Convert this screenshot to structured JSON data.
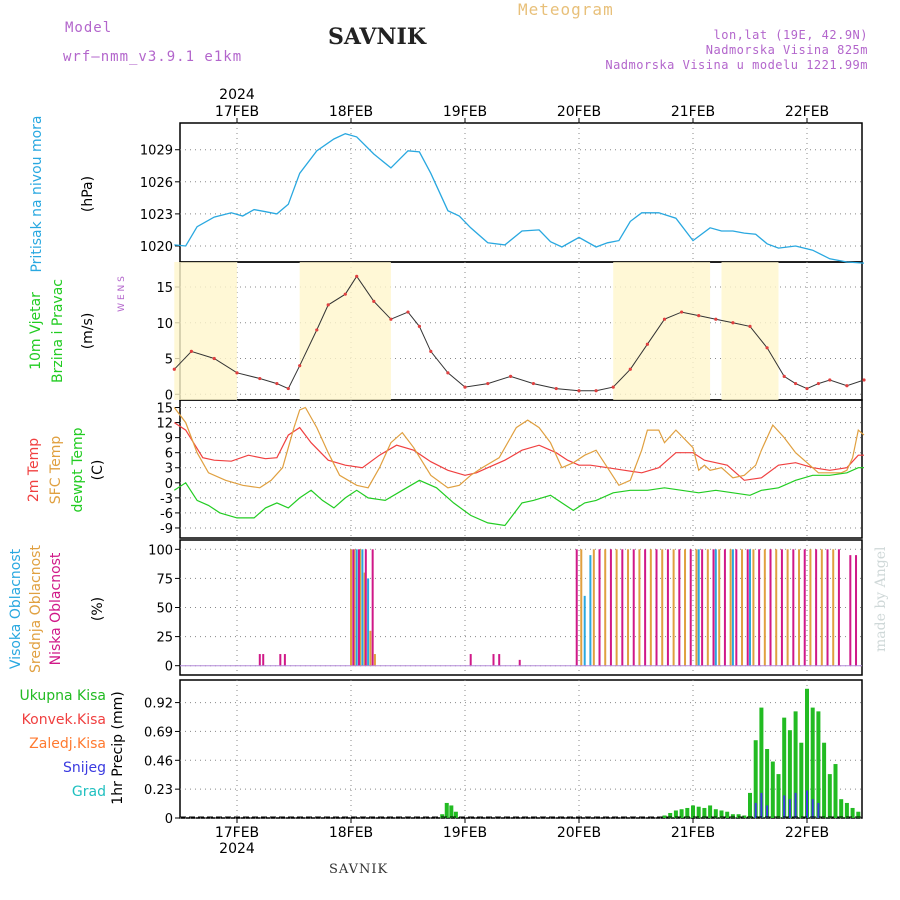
{
  "header": {
    "model_label": "Model",
    "model_name": "wrf—nmm_v3.9.1  e1km",
    "station": "SAVNIK",
    "meteogram": "Meteogram",
    "lonlat": "lon,lat (19E, 42.9N)",
    "elevation": "Nadmorska Visina 825m",
    "model_elevation": "Nadmorska Visina u modelu 1221.99m"
  },
  "footer": {
    "station": "SAVNIK",
    "credit": "made by Angel"
  },
  "time_axis": {
    "year": "2024",
    "days": [
      "17FEB",
      "18FEB",
      "19FEB",
      "20FEB",
      "21FEB",
      "22FEB"
    ]
  },
  "colors": {
    "pressure": "#29a8e0",
    "t2m": "#f04040",
    "sfc": "#e0a040",
    "dewpt": "#22cc22",
    "cloud_high": "#29a8e0",
    "cloud_mid": "#e0a040",
    "cloud_low": "#d01888",
    "precip_total": "#22bb22",
    "precip_conv": "#f04040",
    "precip_frz": "#ff7a30",
    "snow": "#3a3ae0",
    "graupel": "#20c0c0"
  },
  "chart_data": [
    {
      "type": "line",
      "panel": "pressure",
      "ylabel": "Pritisak na nivou mora",
      "unit": "(hPa)",
      "yticks": [
        1020,
        1023,
        1026,
        1029
      ],
      "ylim": [
        1018.5,
        1031.5
      ],
      "xlim": [
        -0.55,
        5.5
      ],
      "grid": true,
      "series": [
        {
          "x": [
            -0.55,
            -0.45,
            -0.35,
            -0.2,
            -0.05,
            0.05,
            0.15,
            0.25,
            0.35,
            0.45,
            0.55,
            0.7,
            0.85,
            0.95,
            1.05,
            1.2,
            1.35,
            1.5,
            1.6,
            1.7,
            1.85,
            1.95,
            2.05,
            2.2,
            2.35,
            2.5,
            2.65,
            2.75,
            2.85,
            3.0,
            3.15,
            3.25,
            3.35,
            3.45,
            3.55,
            3.7,
            3.85,
            4.0,
            4.15,
            4.25,
            4.35,
            4.45,
            4.55,
            4.65,
            4.75,
            4.9,
            5.05,
            5.2,
            5.35,
            5.5
          ],
          "y": [
            1020.1,
            1020.0,
            1021.8,
            1022.7,
            1023.1,
            1022.8,
            1023.4,
            1023.2,
            1023.0,
            1023.9,
            1026.8,
            1028.9,
            1030.0,
            1030.5,
            1030.2,
            1028.6,
            1027.3,
            1028.9,
            1028.8,
            1026.8,
            1023.3,
            1022.8,
            1021.7,
            1020.3,
            1020.1,
            1021.4,
            1021.5,
            1020.4,
            1019.9,
            1020.8,
            1019.9,
            1020.3,
            1020.5,
            1022.3,
            1023.1,
            1023.1,
            1022.6,
            1020.5,
            1021.7,
            1021.4,
            1021.4,
            1021.2,
            1021.1,
            1020.2,
            1019.8,
            1020.0,
            1019.6,
            1018.8,
            1018.5,
            1018.4
          ]
        }
      ]
    },
    {
      "type": "line",
      "panel": "wind",
      "ylabel": [
        "10m Vjetar",
        "Brzina i Pravac"
      ],
      "unit": "(m/s)",
      "compass": "W  E  N  S",
      "yticks": [
        0,
        5,
        10,
        15
      ],
      "ylim": [
        -0.8,
        18.5
      ],
      "xlim": [
        -0.55,
        5.5
      ],
      "series": [
        {
          "x": [
            -0.55,
            -0.4,
            -0.2,
            0.0,
            0.2,
            0.35,
            0.45,
            0.55,
            0.7,
            0.8,
            0.95,
            1.05,
            1.2,
            1.35,
            1.5,
            1.6,
            1.7,
            1.85,
            2.0,
            2.2,
            2.4,
            2.6,
            2.8,
            3.0,
            3.15,
            3.3,
            3.45,
            3.6,
            3.75,
            3.9,
            4.05,
            4.2,
            4.35,
            4.5,
            4.65,
            4.8,
            4.9,
            5.0,
            5.1,
            5.2,
            5.35,
            5.5
          ],
          "y": [
            3.5,
            6.0,
            5.0,
            3.0,
            2.2,
            1.5,
            0.8,
            4.0,
            9.0,
            12.5,
            14.0,
            16.5,
            13.0,
            10.5,
            11.5,
            9.5,
            6.0,
            3.0,
            1.0,
            1.5,
            2.5,
            1.5,
            0.8,
            0.5,
            0.5,
            1.0,
            3.5,
            7.0,
            10.5,
            11.5,
            11.0,
            10.5,
            10.0,
            9.5,
            6.5,
            2.5,
            1.5,
            0.8,
            1.5,
            2.0,
            1.2,
            2.0
          ]
        }
      ]
    },
    {
      "type": "line",
      "panel": "temperature",
      "ylabel": [
        "2m Temp",
        "SFC Temp",
        "dewpt Temp"
      ],
      "unit": "(C)",
      "yticks": [
        -9,
        -6,
        -3,
        0,
        3,
        6,
        9,
        12,
        15
      ],
      "ylim": [
        -11,
        16.5
      ],
      "xlim": [
        -0.55,
        5.5
      ],
      "series": [
        {
          "name": "2m Temp",
          "x": [
            -0.55,
            -0.45,
            -0.3,
            -0.2,
            -0.05,
            0.1,
            0.25,
            0.35,
            0.45,
            0.55,
            0.65,
            0.8,
            0.95,
            1.1,
            1.25,
            1.4,
            1.55,
            1.7,
            1.85,
            2.0,
            2.1,
            2.2,
            2.35,
            2.5,
            2.65,
            2.8,
            2.9,
            3.0,
            3.1,
            3.25,
            3.4,
            3.55,
            3.7,
            3.85,
            4.0,
            4.1,
            4.2,
            4.3,
            4.45,
            4.6,
            4.75,
            4.9,
            5.05,
            5.2,
            5.35,
            5.45,
            5.5
          ],
          "y": [
            12.0,
            10.5,
            5.0,
            4.5,
            4.3,
            5.5,
            4.8,
            5.0,
            9.5,
            11.0,
            8.0,
            4.5,
            3.5,
            3.0,
            5.5,
            7.5,
            6.5,
            4.2,
            2.5,
            1.5,
            2.0,
            3.0,
            4.5,
            6.5,
            7.5,
            6.0,
            4.5,
            3.5,
            3.5,
            3.0,
            2.5,
            2.0,
            3.0,
            6.0,
            6.0,
            4.5,
            4.0,
            3.5,
            0.5,
            1.0,
            3.5,
            4.0,
            3.0,
            2.5,
            3.0,
            5.5,
            5.5
          ]
        },
        {
          "name": "SFC Temp",
          "x": [
            -0.55,
            -0.45,
            -0.35,
            -0.25,
            -0.1,
            0.05,
            0.2,
            0.3,
            0.4,
            0.5,
            0.55,
            0.6,
            0.7,
            0.8,
            0.9,
            1.05,
            1.15,
            1.25,
            1.35,
            1.45,
            1.55,
            1.7,
            1.85,
            1.95,
            2.05,
            2.15,
            2.3,
            2.45,
            2.55,
            2.65,
            2.75,
            2.85,
            2.95,
            3.05,
            3.15,
            3.25,
            3.35,
            3.45,
            3.55,
            3.6,
            3.7,
            3.75,
            3.85,
            4.0,
            4.05,
            4.1,
            4.15,
            4.25,
            4.35,
            4.45,
            4.55,
            4.6,
            4.7,
            4.8,
            4.9,
            5.0,
            5.1,
            5.2,
            5.3,
            5.35,
            5.4,
            5.45,
            5.5
          ],
          "y": [
            15.0,
            12.0,
            6.0,
            2.0,
            0.5,
            -0.5,
            -1.0,
            0.5,
            3.0,
            11.0,
            14.5,
            15.0,
            11.0,
            6.0,
            1.5,
            -0.5,
            -1.0,
            3.0,
            8.0,
            10.0,
            7.0,
            1.5,
            -1.0,
            -0.5,
            1.5,
            3.0,
            5.0,
            11.0,
            12.5,
            11.0,
            8.0,
            3.0,
            4.0,
            5.5,
            6.5,
            3.0,
            -0.5,
            0.5,
            6.5,
            10.5,
            10.5,
            8.0,
            10.5,
            7.0,
            2.5,
            3.5,
            2.5,
            3.0,
            1.0,
            1.5,
            3.5,
            6.5,
            11.5,
            9.0,
            6.0,
            4.0,
            2.0,
            2.0,
            2.0,
            2.5,
            5.0,
            10.5,
            9.5
          ]
        },
        {
          "name": "dewpt Temp",
          "x": [
            -0.55,
            -0.45,
            -0.35,
            -0.25,
            -0.15,
            0.0,
            0.15,
            0.25,
            0.35,
            0.45,
            0.55,
            0.65,
            0.75,
            0.85,
            0.95,
            1.05,
            1.15,
            1.3,
            1.45,
            1.6,
            1.75,
            1.9,
            2.05,
            2.2,
            2.35,
            2.5,
            2.6,
            2.75,
            2.85,
            2.95,
            3.05,
            3.15,
            3.3,
            3.45,
            3.6,
            3.75,
            3.9,
            4.05,
            4.2,
            4.35,
            4.5,
            4.6,
            4.75,
            4.9,
            5.05,
            5.2,
            5.35,
            5.45,
            5.5
          ],
          "y": [
            -1.5,
            0.0,
            -3.5,
            -4.5,
            -6.0,
            -7.0,
            -7.0,
            -5.0,
            -4.0,
            -5.0,
            -3.0,
            -1.5,
            -3.5,
            -5.0,
            -3.0,
            -1.5,
            -3.0,
            -3.5,
            -1.5,
            0.5,
            -1.0,
            -4.0,
            -6.5,
            -8.0,
            -8.5,
            -4.0,
            -3.5,
            -2.5,
            -4.0,
            -5.5,
            -4.0,
            -3.5,
            -2.0,
            -1.5,
            -1.5,
            -1.0,
            -1.5,
            -2.0,
            -1.5,
            -2.0,
            -2.5,
            -1.5,
            -1.0,
            0.5,
            1.5,
            1.5,
            2.0,
            3.0,
            3.0
          ]
        }
      ]
    },
    {
      "type": "bar",
      "panel": "clouds",
      "ylabel": [
        "Visoka Oblacnost",
        "Srednja Oblacnost",
        "Niska Oblacnost"
      ],
      "unit": "(%)",
      "yticks": [
        0,
        25,
        50,
        75,
        100
      ],
      "ylim": [
        -8,
        108
      ],
      "xlim": [
        -0.55,
        5.5
      ],
      "series": [
        {
          "name": "Visoka Oblacnost",
          "x": [
            1.0,
            1.05,
            1.1,
            1.15,
            3.05,
            3.1,
            4.05,
            4.2,
            4.35,
            4.5
          ],
          "values": [
            100,
            100,
            100,
            75,
            60,
            95,
            100,
            100,
            100,
            100
          ]
        },
        {
          "name": "Srednja Oblacnost",
          "x": [
            1.0,
            1.03,
            1.08,
            1.12,
            1.17,
            1.21,
            1.25,
            3.02,
            3.13,
            3.23,
            3.33,
            3.43,
            3.53,
            3.63,
            3.73,
            3.83,
            3.93,
            4.03,
            4.13,
            4.23,
            4.33,
            4.43,
            4.53,
            4.63,
            4.73,
            4.83,
            4.93,
            5.03,
            5.13,
            5.23
          ],
          "values": [
            100,
            100,
            100,
            80,
            30,
            10,
            0,
            100,
            100,
            100,
            100,
            100,
            100,
            100,
            100,
            100,
            100,
            100,
            100,
            100,
            100,
            100,
            100,
            100,
            100,
            100,
            100,
            100,
            100,
            100
          ]
        },
        {
          "name": "Niska Oblacnost",
          "x": [
            0.2,
            0.23,
            0.38,
            0.42,
            1.02,
            1.07,
            1.13,
            1.19,
            2.05,
            2.25,
            2.3,
            2.48,
            2.98,
            3.18,
            3.28,
            3.38,
            3.48,
            3.58,
            3.68,
            3.78,
            3.88,
            3.98,
            4.08,
            4.18,
            4.28,
            4.38,
            4.48,
            4.58,
            4.68,
            4.78,
            4.88,
            4.98,
            5.08,
            5.18,
            5.28,
            5.38,
            5.43
          ],
          "values": [
            10,
            10,
            10,
            10,
            100,
            100,
            100,
            100,
            10,
            10,
            10,
            5,
            100,
            100,
            100,
            100,
            100,
            100,
            100,
            100,
            100,
            100,
            100,
            100,
            100,
            100,
            100,
            100,
            100,
            100,
            100,
            100,
            100,
            100,
            100,
            95,
            95
          ]
        }
      ]
    },
    {
      "type": "bar",
      "panel": "precipitation",
      "ylabel": "1hr Precip (mm)",
      "legend": [
        "Ukupna Kisa",
        "Konvek.Kisa",
        "Zaledj.Kisa",
        "Snijeg",
        "Grad"
      ],
      "yticks": [
        0,
        0.23,
        0.46,
        0.69,
        0.92
      ],
      "ylim": [
        0,
        1.1
      ],
      "xlim": [
        -0.55,
        5.5
      ],
      "series": [
        {
          "name": "Ukupna Kisa",
          "x": [
            1.8,
            1.84,
            1.88,
            1.92,
            3.75,
            3.8,
            3.85,
            3.9,
            3.95,
            4.0,
            4.05,
            4.1,
            4.15,
            4.2,
            4.25,
            4.3,
            4.35,
            4.4,
            4.45,
            4.5,
            4.55,
            4.6,
            4.65,
            4.7,
            4.75,
            4.8,
            4.85,
            4.9,
            4.95,
            5.0,
            5.05,
            5.1,
            5.15,
            5.2,
            5.25,
            5.3,
            5.35,
            5.4,
            5.45
          ],
          "values": [
            0.03,
            0.12,
            0.1,
            0.05,
            0.02,
            0.04,
            0.06,
            0.07,
            0.08,
            0.1,
            0.09,
            0.08,
            0.1,
            0.07,
            0.06,
            0.05,
            0.03,
            0.03,
            0.02,
            0.2,
            0.62,
            0.88,
            0.55,
            0.45,
            0.35,
            0.8,
            0.7,
            0.85,
            0.6,
            1.03,
            0.88,
            0.85,
            0.6,
            0.35,
            0.43,
            0.15,
            0.12,
            0.08,
            0.05
          ]
        },
        {
          "name": "Snijeg",
          "x": [
            4.55,
            4.6,
            4.65,
            4.8,
            4.85,
            4.9,
            5.0,
            5.05,
            5.1
          ],
          "values": [
            0.12,
            0.2,
            0.1,
            0.18,
            0.15,
            0.2,
            0.22,
            0.15,
            0.12
          ]
        }
      ]
    }
  ]
}
